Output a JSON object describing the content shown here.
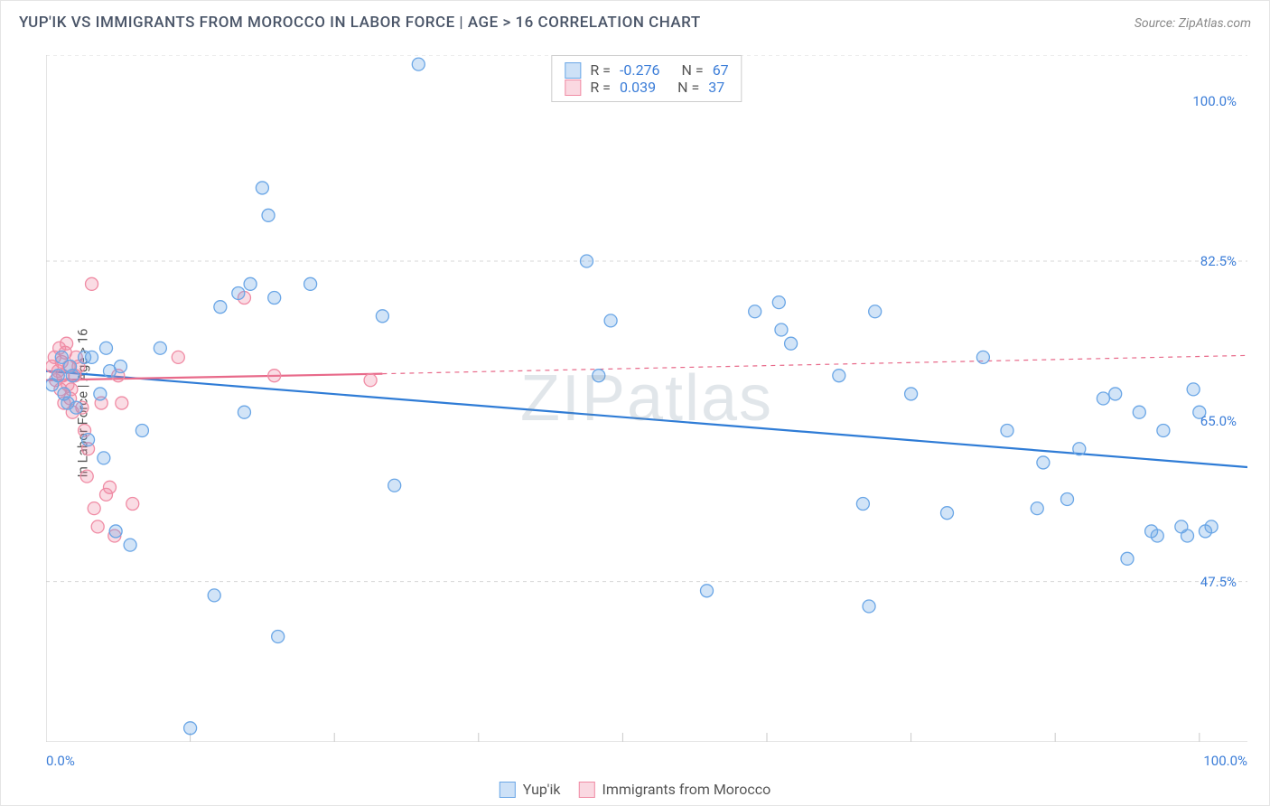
{
  "title": "YUP'IK VS IMMIGRANTS FROM MOROCCO IN LABOR FORCE | AGE > 16 CORRELATION CHART",
  "source": "Source: ZipAtlas.com",
  "watermark": "ZIPatlas",
  "ylabel": "In Labor Force | Age > 16",
  "chart": {
    "type": "scatter",
    "background_color": "#ffffff",
    "grid_color": "#d7d7d7",
    "grid_dash": "4 4",
    "axis_color": "#c9c9c9",
    "label_fontsize": 15,
    "title_fontsize": 17,
    "title_color": "#4a5568",
    "tick_color": "#3b7dd8",
    "xlim": [
      0,
      100
    ],
    "ylim": [
      30,
      105
    ],
    "ygrid_at": [
      47.5,
      82.5,
      105
    ],
    "yticks": [
      {
        "v": 47.5,
        "label": "47.5%"
      },
      {
        "v": 65.0,
        "label": "65.0%"
      },
      {
        "v": 82.5,
        "label": "82.5%"
      },
      {
        "v": 100.0,
        "label": "100.0%"
      }
    ],
    "xticks": [
      {
        "v": 0,
        "label": "0.0%"
      },
      {
        "v": 100,
        "label": "100.0%"
      }
    ],
    "xtick_marks_at": [
      12,
      24,
      36,
      48,
      60,
      72,
      84,
      96
    ],
    "marker_radius": 7,
    "marker_stroke_width": 1.3,
    "marker_fill_opacity": 0.3,
    "line_width": 2.2
  },
  "series": {
    "a": {
      "name": "Yup'ik",
      "color": "#6aa6e6",
      "line_color": "#2f7cd6",
      "R": "-0.276",
      "N": "67",
      "regression": {
        "x1": 0,
        "y1": 70.5,
        "x2": 100,
        "y2": 60.0
      },
      "points": [
        [
          0.5,
          69
        ],
        [
          1,
          70
        ],
        [
          1.3,
          72
        ],
        [
          1.5,
          68
        ],
        [
          1.8,
          67
        ],
        [
          2,
          71
        ],
        [
          2.2,
          70
        ],
        [
          2.5,
          66.5
        ],
        [
          3.2,
          72
        ],
        [
          3.5,
          63
        ],
        [
          3.8,
          72
        ],
        [
          4.5,
          68
        ],
        [
          4.8,
          61
        ],
        [
          5,
          73
        ],
        [
          5.3,
          70.5
        ],
        [
          5.8,
          53
        ],
        [
          6.2,
          71
        ],
        [
          7,
          51.5
        ],
        [
          8,
          64
        ],
        [
          9.5,
          73
        ],
        [
          12,
          31.5
        ],
        [
          14,
          46
        ],
        [
          14.5,
          77.5
        ],
        [
          16,
          79
        ],
        [
          16.5,
          66
        ],
        [
          17,
          80
        ],
        [
          18,
          90.5
        ],
        [
          18.5,
          87.5
        ],
        [
          19,
          78.5
        ],
        [
          19.3,
          41.5
        ],
        [
          22,
          80
        ],
        [
          28,
          76.5
        ],
        [
          29,
          58
        ],
        [
          31,
          104
        ],
        [
          45,
          82.5
        ],
        [
          46,
          70
        ],
        [
          47,
          76
        ],
        [
          55,
          46.5
        ],
        [
          59,
          77
        ],
        [
          61,
          78
        ],
        [
          61.2,
          75
        ],
        [
          62,
          73.5
        ],
        [
          66,
          70
        ],
        [
          68,
          56
        ],
        [
          68.5,
          44.8
        ],
        [
          69,
          77
        ],
        [
          72,
          68
        ],
        [
          75,
          55
        ],
        [
          78,
          72
        ],
        [
          80,
          64
        ],
        [
          82.5,
          55.5
        ],
        [
          83,
          60.5
        ],
        [
          85,
          56.5
        ],
        [
          86,
          62
        ],
        [
          88,
          67.5
        ],
        [
          89,
          68
        ],
        [
          90,
          50
        ],
        [
          91,
          66
        ],
        [
          92,
          53
        ],
        [
          92.5,
          52.5
        ],
        [
          93,
          64
        ],
        [
          94.5,
          53.5
        ],
        [
          95,
          52.5
        ],
        [
          95.5,
          68.5
        ],
        [
          96,
          66
        ],
        [
          96.5,
          53
        ],
        [
          97,
          53.5
        ]
      ]
    },
    "b": {
      "name": "Immigants from Morocco",
      "display_name": "Immigrants from Morocco",
      "color": "#f08ba4",
      "line_color": "#e86a8a",
      "R": "0.039",
      "N": "37",
      "regression_solid": {
        "x1": 0,
        "y1": 69.5,
        "x2": 28,
        "y2": 70.2
      },
      "regression_dash": {
        "x1": 28,
        "y1": 70.2,
        "x2": 100,
        "y2": 72.2
      },
      "points": [
        [
          0.5,
          71
        ],
        [
          0.7,
          72
        ],
        [
          0.8,
          69.5
        ],
        [
          1,
          70.5
        ],
        [
          1.1,
          73
        ],
        [
          1.2,
          68.5
        ],
        [
          1.3,
          71.5
        ],
        [
          1.4,
          70
        ],
        [
          1.5,
          67
        ],
        [
          1.6,
          72.5
        ],
        [
          1.7,
          73.5
        ],
        [
          1.8,
          69
        ],
        [
          1.9,
          71
        ],
        [
          2,
          67.5
        ],
        [
          2.1,
          68.5
        ],
        [
          2.2,
          66
        ],
        [
          2.4,
          70
        ],
        [
          2.5,
          72
        ],
        [
          2.7,
          71
        ],
        [
          3,
          66.5
        ],
        [
          3.2,
          64
        ],
        [
          3.4,
          59
        ],
        [
          3.5,
          62
        ],
        [
          3.8,
          80
        ],
        [
          4,
          55.5
        ],
        [
          4.3,
          53.5
        ],
        [
          4.6,
          67
        ],
        [
          5,
          57
        ],
        [
          5.3,
          57.8
        ],
        [
          5.7,
          52.5
        ],
        [
          6,
          70
        ],
        [
          6.3,
          67
        ],
        [
          7.2,
          56
        ],
        [
          11,
          72
        ],
        [
          16.5,
          78.5
        ],
        [
          19,
          70
        ],
        [
          27,
          69.5
        ]
      ]
    }
  },
  "legend_top": {
    "rows": [
      {
        "swatch": "a",
        "r_label": "R =",
        "n_label": "N =",
        "R": "-0.276",
        "N": "67"
      },
      {
        "swatch": "b",
        "r_label": "R =",
        "n_label": "N =",
        "R": "0.039",
        "N": "37"
      }
    ]
  },
  "legend_bottom": [
    {
      "swatch": "a",
      "label": "Yup'ik"
    },
    {
      "swatch": "b",
      "label": "Immigrants from Morocco"
    }
  ]
}
